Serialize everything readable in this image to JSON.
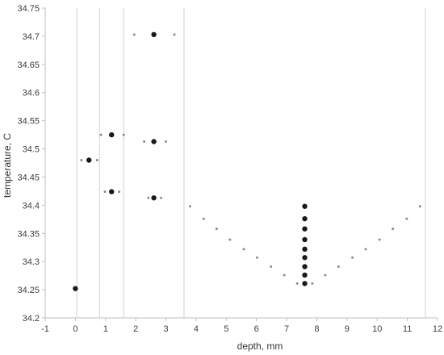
{
  "chart_data": {
    "type": "scatter",
    "title": "",
    "xlabel": "depth, mm",
    "ylabel": "temperature, C",
    "xlim": [
      -1,
      12
    ],
    "ylim": [
      34.2,
      34.75
    ],
    "xticks": [
      -1,
      0,
      1,
      2,
      3,
      4,
      5,
      6,
      7,
      8,
      9,
      10,
      11,
      12
    ],
    "yticks": [
      34.2,
      34.25,
      34.3,
      34.35,
      34.4,
      34.45,
      34.5,
      34.55,
      34.6,
      34.65,
      34.7,
      34.75
    ],
    "xtick_labels": [
      "-1",
      "0",
      "1",
      "2",
      "3",
      "4",
      "5",
      "6",
      "7",
      "8",
      "9",
      "10",
      "11",
      "12"
    ],
    "ytick_labels": [
      "34.2",
      "34.25",
      "34.3",
      "34.35",
      "34.4",
      "34.45",
      "34.5",
      "34.55",
      "34.6",
      "34.65",
      "34.7",
      "34.75"
    ],
    "grid": false,
    "reference_lines_x": [
      0.05,
      0.8,
      1.6,
      3.6,
      11.6
    ],
    "series": [
      {
        "marker": "large",
        "color": "#1a1a1a",
        "points": [
          {
            "x": 0.0,
            "y": 34.252
          },
          {
            "x": 0.45,
            "y": 34.48
          },
          {
            "x": 1.2,
            "y": 34.525
          },
          {
            "x": 1.2,
            "y": 34.424
          },
          {
            "x": 2.6,
            "y": 34.703
          },
          {
            "x": 2.6,
            "y": 34.513
          },
          {
            "x": 2.6,
            "y": 34.413
          },
          {
            "x": 7.6,
            "y": 34.398
          },
          {
            "x": 7.6,
            "y": 34.376
          },
          {
            "x": 7.6,
            "y": 34.358
          },
          {
            "x": 7.6,
            "y": 34.339
          },
          {
            "x": 7.6,
            "y": 34.322
          },
          {
            "x": 7.6,
            "y": 34.307
          },
          {
            "x": 7.6,
            "y": 34.291
          },
          {
            "x": 7.6,
            "y": 34.276
          },
          {
            "x": 7.6,
            "y": 34.261
          }
        ]
      },
      {
        "marker": "small",
        "color": "#8c8c8c",
        "points": [
          {
            "x": 1.95,
            "y": 34.703
          },
          {
            "x": 3.28,
            "y": 34.703
          },
          {
            "x": 0.85,
            "y": 34.525
          },
          {
            "x": 1.6,
            "y": 34.525
          },
          {
            "x": 2.28,
            "y": 34.513
          },
          {
            "x": 3.0,
            "y": 34.513
          },
          {
            "x": 0.2,
            "y": 34.48
          },
          {
            "x": 0.72,
            "y": 34.48
          },
          {
            "x": 0.98,
            "y": 34.424
          },
          {
            "x": 1.45,
            "y": 34.424
          },
          {
            "x": 2.42,
            "y": 34.413
          },
          {
            "x": 2.84,
            "y": 34.413
          },
          {
            "x": 3.8,
            "y": 34.398
          },
          {
            "x": 4.25,
            "y": 34.376
          },
          {
            "x": 4.68,
            "y": 34.358
          },
          {
            "x": 5.12,
            "y": 34.339
          },
          {
            "x": 5.58,
            "y": 34.322
          },
          {
            "x": 6.02,
            "y": 34.307
          },
          {
            "x": 6.48,
            "y": 34.291
          },
          {
            "x": 6.92,
            "y": 34.276
          },
          {
            "x": 7.35,
            "y": 34.261
          },
          {
            "x": 7.85,
            "y": 34.261
          },
          {
            "x": 8.28,
            "y": 34.276
          },
          {
            "x": 8.72,
            "y": 34.291
          },
          {
            "x": 9.18,
            "y": 34.307
          },
          {
            "x": 9.62,
            "y": 34.322
          },
          {
            "x": 10.08,
            "y": 34.339
          },
          {
            "x": 10.52,
            "y": 34.358
          },
          {
            "x": 10.98,
            "y": 34.376
          },
          {
            "x": 11.42,
            "y": 34.398
          }
        ]
      }
    ]
  }
}
